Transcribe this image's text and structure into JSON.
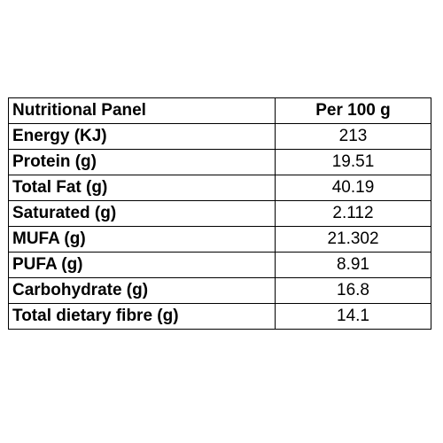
{
  "table": {
    "header": {
      "label": "Nutritional Panel",
      "value": "Per 100 g"
    },
    "rows": [
      {
        "label": "Energy (KJ)",
        "value": "213"
      },
      {
        "label": "Protein (g)",
        "value": "19.51"
      },
      {
        "label": "Total Fat (g)",
        "value": "40.19"
      },
      {
        "label": "Saturated (g)",
        "value": "2.112"
      },
      {
        "label": "MUFA (g)",
        "value": "21.302"
      },
      {
        "label": "PUFA (g)",
        "value": "8.91"
      },
      {
        "label": "Carbohydrate (g)",
        "value": "16.8"
      },
      {
        "label": "Total dietary fibre (g)",
        "value": "14.1"
      }
    ]
  }
}
